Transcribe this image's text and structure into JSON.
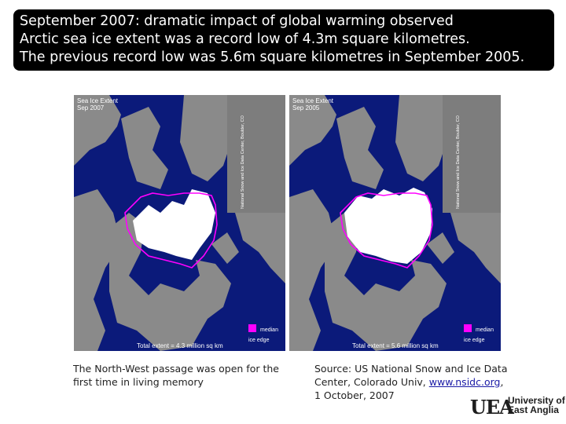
{
  "banner": {
    "line1": "September 2007: dramatic impact of global warming observed",
    "line2": "Arctic sea ice extent was a record low of 4.3m square kilometres.",
    "line3": "The previous record low was 5.6m square kilometres in September 2005."
  },
  "maps": [
    {
      "title1": "Sea Ice Extent",
      "title2": "Sep 2007",
      "credit": "National Snow and Ice Data Center, Boulder, CO",
      "total": "Total extent = 4.3 million sq km",
      "legend1": "median",
      "legend2": "ice edge"
    },
    {
      "title1": "Sea Ice Extent",
      "title2": "Sep 2005",
      "credit": "National Snow and Ice Data Center, Boulder, CO",
      "total": "Total extent = 5.6 million sq km",
      "legend1": "median",
      "legend2": "ice edge"
    }
  ],
  "captions": {
    "left_line1": "The North-West passage was open for the",
    "left_line2": "first time in living memory",
    "right_line1": "Source: US National Snow and Ice Data",
    "right_line2_prefix": "Center, Colorado Univ, ",
    "right_link": "www.nsidc.org",
    "right_line2_suffix": ",",
    "right_line3": "1 October, 2007"
  },
  "logo": {
    "mark": "UEA",
    "line1": "University of",
    "line2": "East Anglia"
  },
  "colors": {
    "banner_bg": "#000000",
    "ocean": "#0b1a7a",
    "land": "#8a8a8a",
    "ice": "#ffffff",
    "median_edge": "#ff00ff"
  }
}
